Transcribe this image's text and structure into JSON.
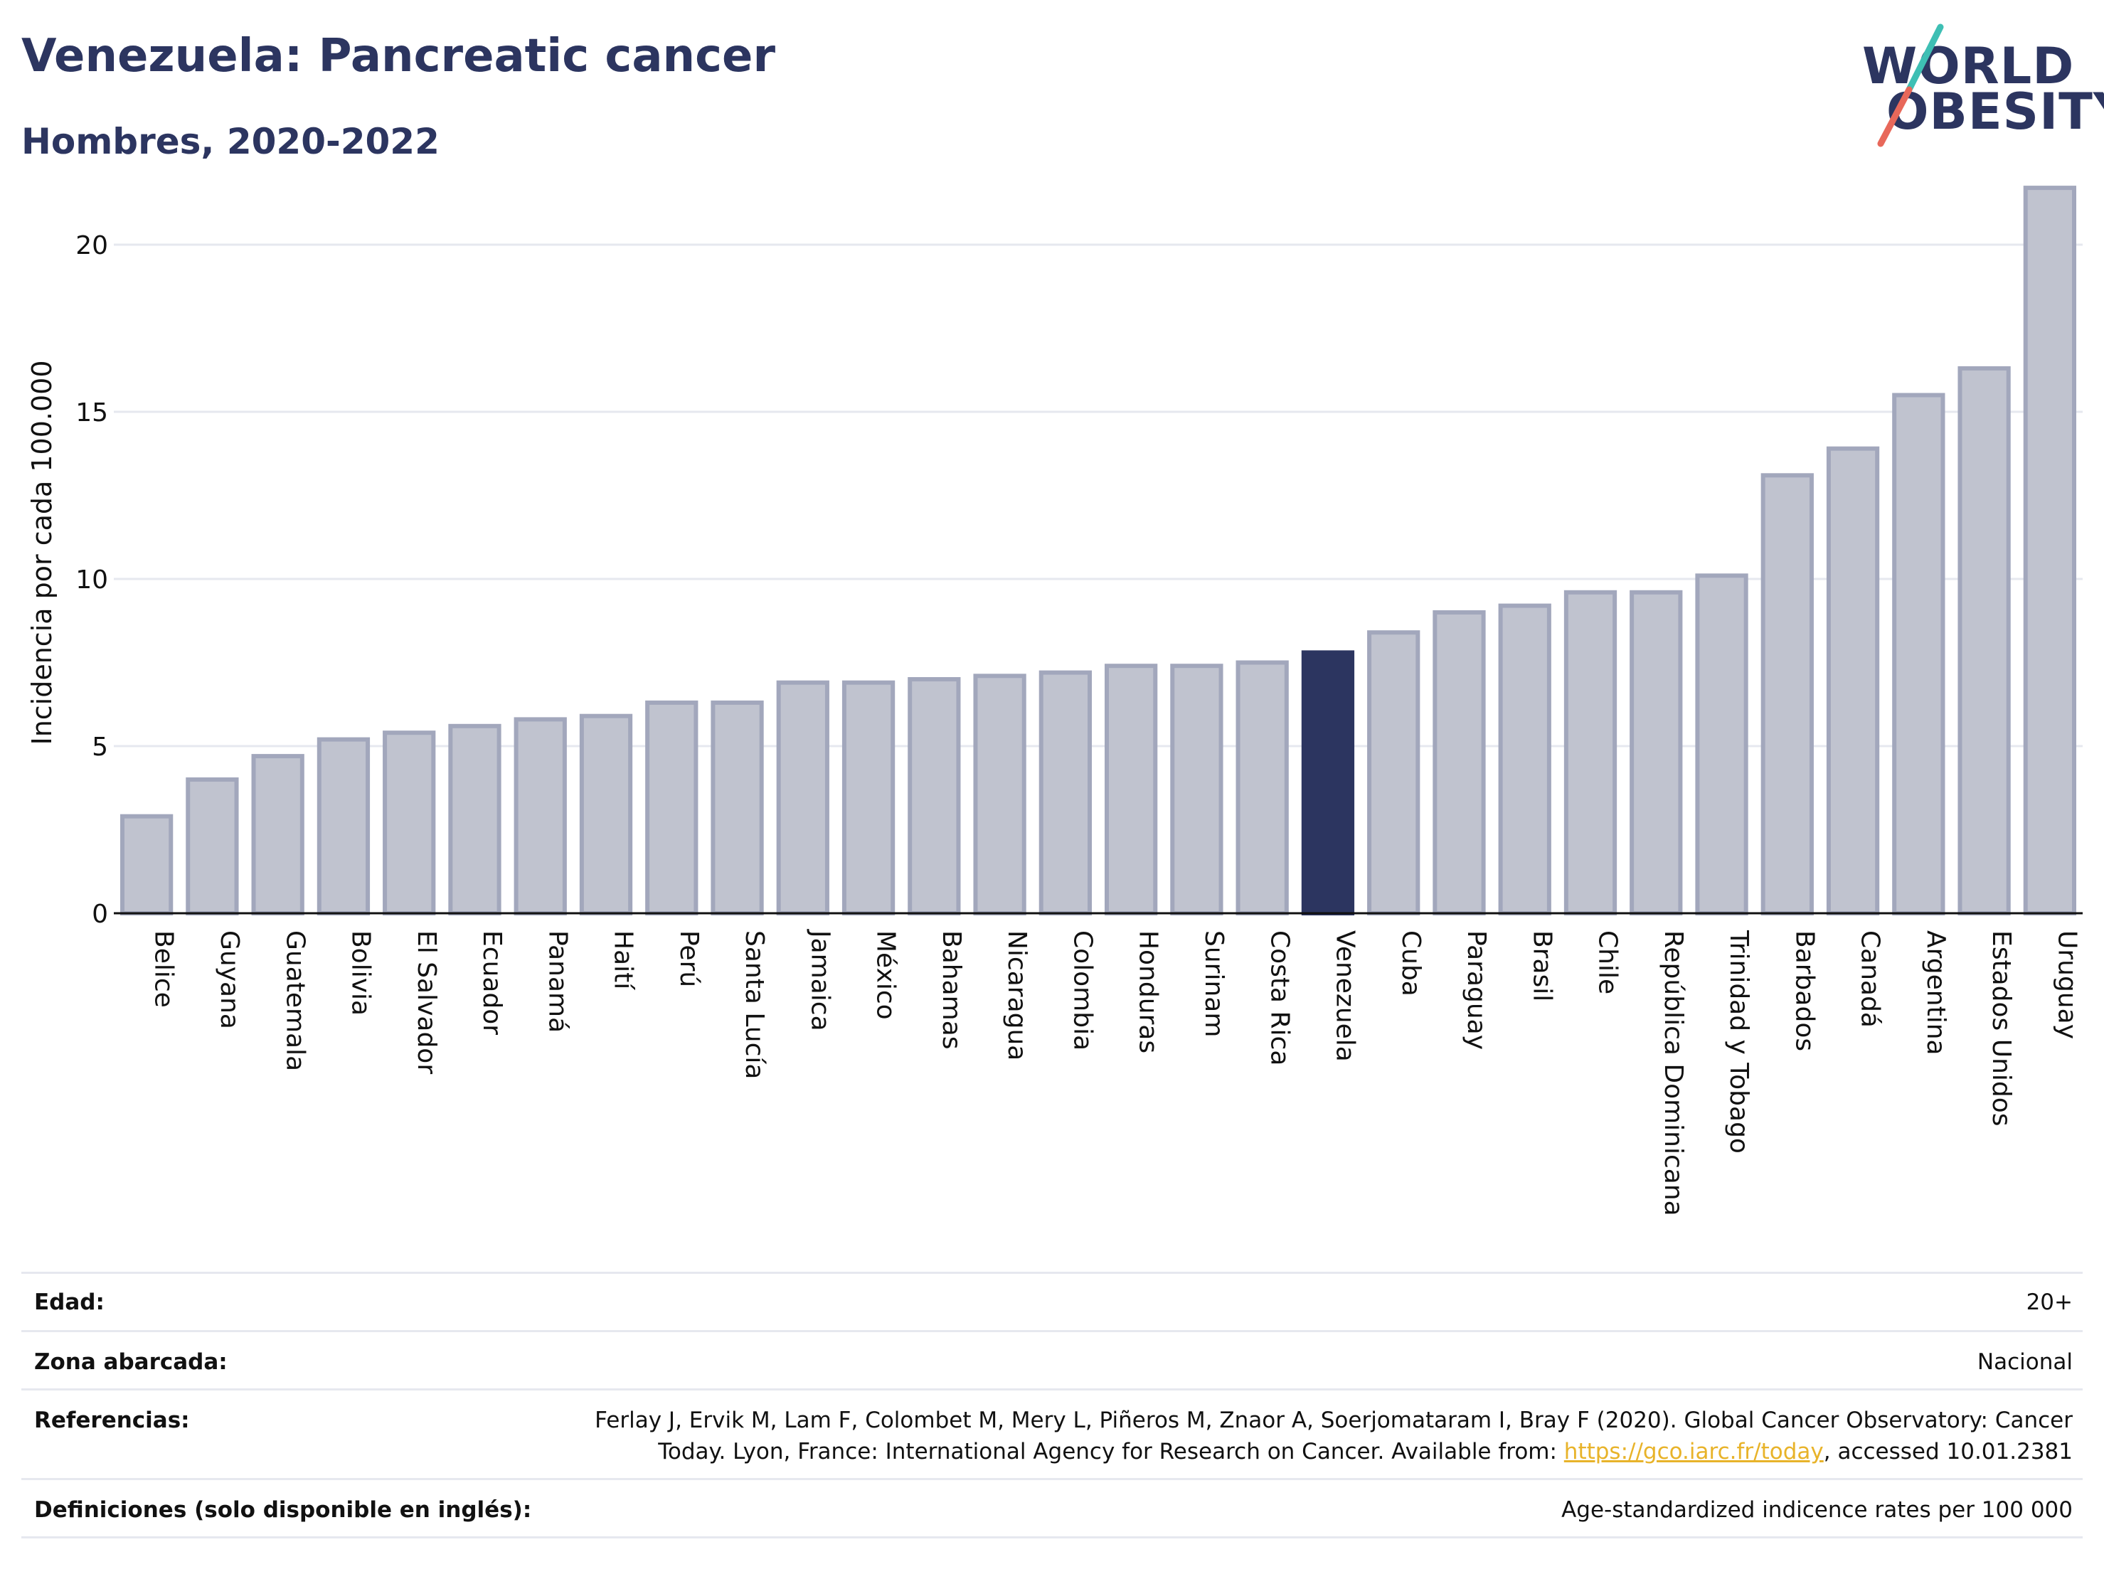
{
  "header": {
    "title": "Venezuela: Pancreatic cancer",
    "subtitle": "Hombres, 2020-2022"
  },
  "logo": {
    "line1": "WORLD",
    "line2": "OBESITY",
    "colors": {
      "text": "#2c3560",
      "slash_top": "#3ebfb4",
      "slash_bottom": "#e8685a"
    }
  },
  "colors": {
    "bar_fill": "#c0c3cf",
    "bar_stroke": "#a2a7bc",
    "highlight": "#2c3560",
    "axis_text": "#111111",
    "gridline": "#e6e8ef"
  },
  "chart_data": {
    "type": "bar",
    "title": "",
    "xlabel": "",
    "ylabel": "Incidencia por cada 100.000",
    "ylim": [
      0,
      22
    ],
    "yticks": [
      0,
      5,
      10,
      15,
      20
    ],
    "grid": true,
    "highlight": "Venezuela",
    "categories": [
      "Belice",
      "Guyana",
      "Guatemala",
      "Bolivia",
      "El Salvador",
      "Ecuador",
      "Panamá",
      "Haití",
      "Perú",
      "Santa Lucía",
      "Jamaica",
      "México",
      "Bahamas",
      "Nicaragua",
      "Colombia",
      "Honduras",
      "Surinam",
      "Costa Rica",
      "Venezuela",
      "Cuba",
      "Paraguay",
      "Brasil",
      "Chile",
      "República Dominicana",
      "Trinidad y Tobago",
      "Barbados",
      "Canadá",
      "Argentina",
      "Estados Unidos",
      "Uruguay"
    ],
    "values": [
      2.9,
      4.0,
      4.7,
      5.2,
      5.4,
      5.6,
      5.8,
      5.9,
      6.3,
      6.3,
      6.9,
      6.9,
      7.0,
      7.1,
      7.2,
      7.4,
      7.4,
      7.5,
      7.8,
      8.4,
      9.0,
      9.2,
      9.6,
      9.6,
      10.1,
      13.1,
      13.9,
      15.5,
      16.3,
      21.7
    ]
  },
  "info": {
    "edad_label": "Edad:",
    "edad_value": "20+",
    "zona_label": "Zona abarcada:",
    "zona_value": "Nacional",
    "ref_label": "Referencias:",
    "ref_line1": "Ferlay J, Ervik M, Lam F, Colombet M, Mery L, Piñeros M, Znaor A, Soerjomataram I, Bray F (2020). Global Cancer Observatory: Cancer",
    "ref_line2_pre": "Today. Lyon, France: International Agency for Research on Cancer. Available from: ",
    "ref_link": "https://gco.iarc.fr/today",
    "ref_line2_post": ", accessed 10.01.2381",
    "def_label": "Definiciones (solo disponible en inglés):",
    "def_value": "Age-standardized indicence rates per 100 000"
  }
}
